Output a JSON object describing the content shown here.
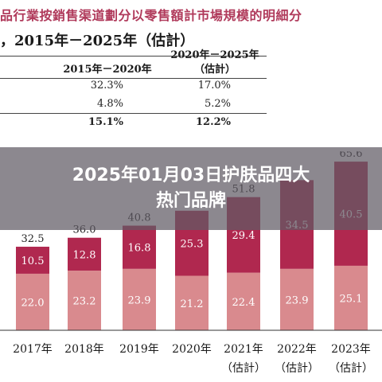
{
  "header": {
    "title_line1": "品行業按銷售渠道劃分以零售額計市場規模的明細分",
    "title_line2": "，2015年－2025年（估計）"
  },
  "table": {
    "col1_header": "2015年－2020年",
    "col2_header_line1": "2020年－2025年",
    "col2_header_line2": "（估計）",
    "rows": [
      {
        "c1": "32.3%",
        "c2": "17.0%",
        "bold": false
      },
      {
        "c1": "4.8%",
        "c2": "5.2%",
        "bold": false
      },
      {
        "c1": "15.1%",
        "c2": "12.2%",
        "bold": true
      }
    ]
  },
  "banner": {
    "line1": "2025年01月03日护肤品四大",
    "line2": "热门品牌"
  },
  "chart_data": {
    "type": "bar",
    "stacked": true,
    "categories": [
      [
        "2017年",
        ""
      ],
      [
        "2018年",
        ""
      ],
      [
        "2019年",
        ""
      ],
      [
        "2020年",
        ""
      ],
      [
        "2021年",
        "（估計）"
      ],
      [
        "2022年",
        "（估計）"
      ],
      [
        "2023年",
        "（估計）"
      ]
    ],
    "series": [
      {
        "values": [
          22.0,
          23.2,
          23.9,
          21.2,
          22.4,
          23.9,
          25.1
        ],
        "color": "#d98a8e"
      },
      {
        "values": [
          10.5,
          12.8,
          16.8,
          25.3,
          29.4,
          34.5,
          40.5
        ],
        "color": "#b0284f"
      }
    ],
    "totals": [
      32.5,
      36.0,
      40.8,
      46.5,
      51.8,
      58.4,
      65.6
    ],
    "visible_totals": [
      "32.5",
      "36.0",
      "40.8",
      "",
      "51.8",
      "",
      "65.6"
    ],
    "bottom_labels": [
      "22.0",
      "23.2",
      "23.9",
      "21.2",
      "22.4",
      "23.9",
      "25.1"
    ],
    "top_labels": [
      "10.5",
      "12.8",
      "16.8",
      "25.3",
      "29.4",
      "34.5",
      "40.5"
    ],
    "ylim": [
      0,
      70
    ],
    "grid": false,
    "legend": "none"
  }
}
